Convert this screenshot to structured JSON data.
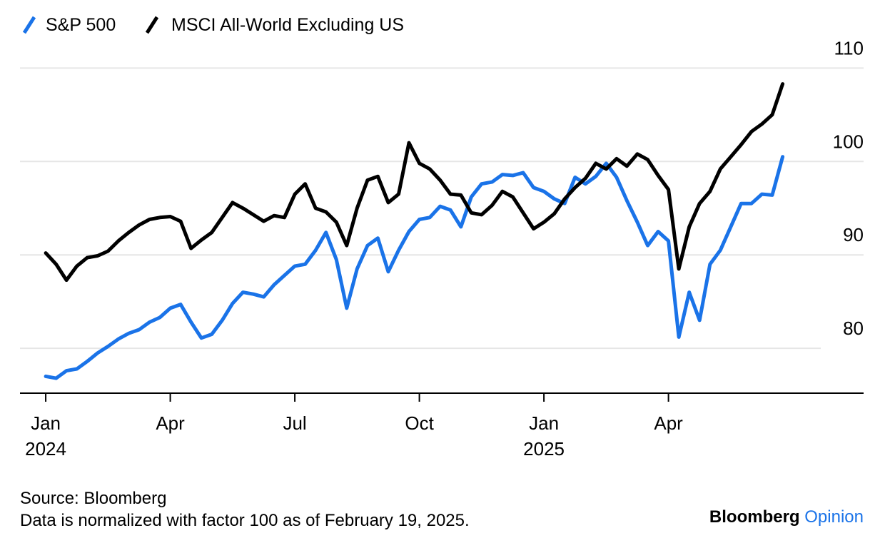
{
  "chart_data": {
    "type": "line",
    "source": "Source: Bloomberg",
    "note": "Data is normalized with factor 100 as of February 19, 2025.",
    "brand": "Bloomberg",
    "brand_suffix": "Opinion",
    "x": [
      0,
      0.25,
      0.5,
      0.75,
      1,
      1.25,
      1.5,
      1.75,
      2,
      2.25,
      2.5,
      2.75,
      3,
      3.25,
      3.5,
      3.75,
      4,
      4.25,
      4.5,
      4.75,
      5,
      5.25,
      5.5,
      5.75,
      6,
      6.25,
      6.5,
      6.75,
      7,
      7.25,
      7.5,
      7.75,
      8,
      8.25,
      8.5,
      8.75,
      9,
      9.25,
      9.5,
      9.75,
      10,
      10.25,
      10.5,
      10.75,
      11,
      11.25,
      11.5,
      11.75,
      12,
      12.25,
      12.5,
      12.75,
      13,
      13.25,
      13.5,
      13.75,
      14,
      14.25,
      14.5,
      14.75,
      15,
      15.25,
      15.5,
      15.75,
      16,
      16.25,
      16.5,
      16.75,
      17,
      17.25,
      17.5,
      17.75
    ],
    "series": [
      {
        "name": "S&P 500",
        "color": "#1a73e8",
        "values": [
          77.0,
          76.8,
          77.6,
          77.8,
          78.6,
          79.5,
          80.2,
          81.0,
          81.6,
          82.0,
          82.8,
          83.3,
          84.3,
          84.7,
          82.8,
          81.1,
          81.5,
          83.0,
          84.8,
          86.0,
          85.8,
          85.5,
          86.8,
          87.8,
          88.8,
          89.0,
          90.5,
          92.4,
          89.5,
          84.3,
          88.5,
          91.0,
          91.8,
          88.2,
          90.5,
          92.5,
          93.8,
          94.0,
          95.2,
          94.8,
          93.0,
          96.2,
          97.6,
          97.8,
          98.6,
          98.5,
          98.8,
          97.2,
          96.8,
          96.0,
          95.5,
          98.3,
          97.6,
          98.4,
          99.8,
          98.3,
          95.8,
          93.5,
          91.0,
          92.5,
          91.5,
          81.2,
          86.0,
          83.0,
          89.0,
          90.5,
          93.0,
          95.5,
          95.5,
          96.5,
          96.4,
          100.5
        ]
      },
      {
        "name": "MSCI All-World Excluding US",
        "color": "#000000",
        "values": [
          90.2,
          89.0,
          87.3,
          88.8,
          89.7,
          89.9,
          90.4,
          91.5,
          92.4,
          93.2,
          93.8,
          94.0,
          94.1,
          93.6,
          90.7,
          91.6,
          92.4,
          94.0,
          95.6,
          95.0,
          94.3,
          93.6,
          94.2,
          94.0,
          96.5,
          97.6,
          95.0,
          94.6,
          93.5,
          91.0,
          95.0,
          98.0,
          98.4,
          95.6,
          96.5,
          102.0,
          99.8,
          99.2,
          98.0,
          96.5,
          96.4,
          94.5,
          94.3,
          95.3,
          96.8,
          96.2,
          94.5,
          92.8,
          93.5,
          94.4,
          96.0,
          97.2,
          98.2,
          99.8,
          99.2,
          100.3,
          99.5,
          100.8,
          100.2,
          98.5,
          97.0,
          88.5,
          93.0,
          95.5,
          96.8,
          99.2,
          100.5,
          101.8,
          103.2,
          104.0,
          105.0,
          108.3
        ]
      }
    ],
    "xlim": [
      -0.62,
      19.7
    ],
    "xticks": [
      {
        "value": 0,
        "label": "Jan"
      },
      {
        "value": 3,
        "label": "Apr"
      },
      {
        "value": 6,
        "label": "Jul"
      },
      {
        "value": 9,
        "label": "Oct"
      },
      {
        "value": 12,
        "label": "Jan"
      },
      {
        "value": 15,
        "label": "Apr"
      }
    ],
    "xtick_years": [
      {
        "value": 0,
        "label": "2024"
      },
      {
        "value": 12,
        "label": "2025"
      }
    ],
    "ylim": [
      75.2,
      112.7
    ],
    "yticks": [
      80,
      90,
      100,
      110
    ],
    "grid": true
  }
}
